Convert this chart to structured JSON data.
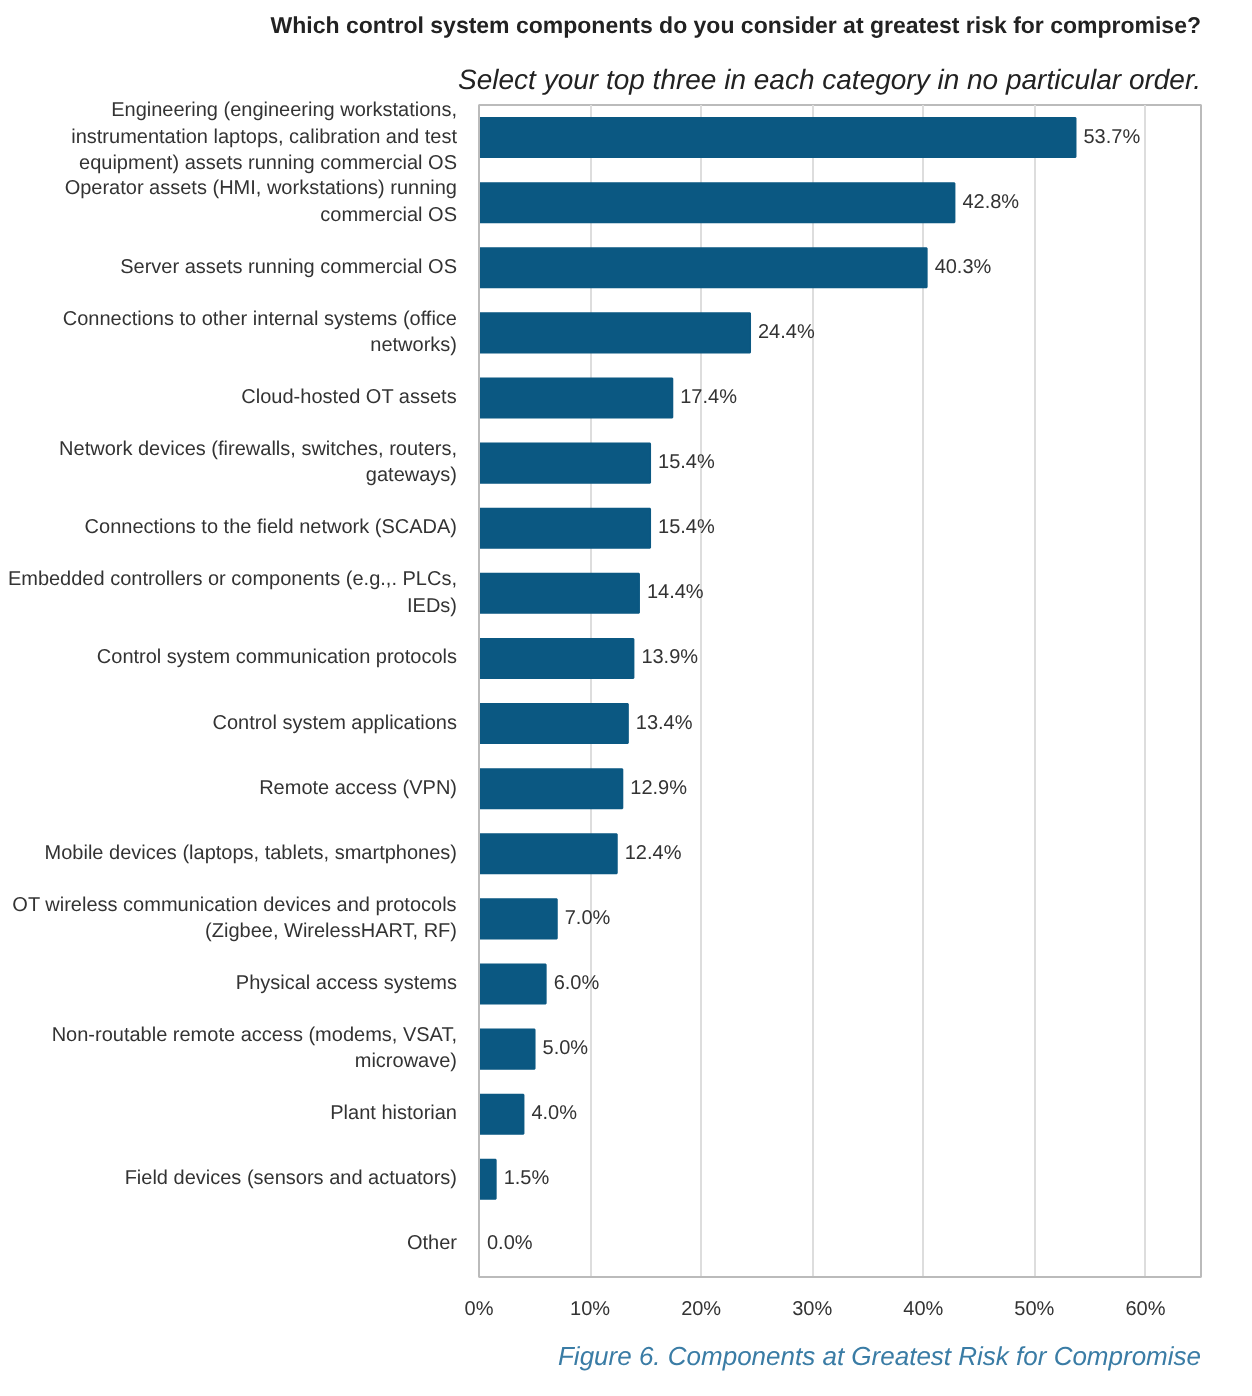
{
  "chart_data": {
    "type": "bar",
    "orientation": "horizontal",
    "title": "Which control system components do you consider at greatest risk for compromise?",
    "subtitle": "Select your top three in each category in no particular order.",
    "categories": [
      "Engineering (engineering workstations, instrumentation laptops, calibration and test equipment) assets running commercial OS",
      "Operator assets (HMI, workstations) running commercial OS",
      "Server assets running commercial OS",
      "Connections to other internal systems (office networks)",
      "Cloud-hosted OT assets",
      "Network devices (firewalls, switches, routers, gateways)",
      "Connections to the field network (SCADA)",
      "Embedded controllers or components (e.g.,. PLCs, IEDs)",
      "Control system communication protocols",
      "Control system applications",
      "Remote access (VPN)",
      "Mobile devices (laptops, tablets, smartphones)",
      "OT wireless communication devices and protocols (Zigbee, WirelessHART, RF)",
      "Physical access systems",
      "Non-routable remote access (modems, VSAT, microwave)",
      "Plant historian",
      "Field devices (sensors and actuators)",
      "Other"
    ],
    "values": [
      53.7,
      42.8,
      40.3,
      24.4,
      17.4,
      15.4,
      15.4,
      14.4,
      13.9,
      13.4,
      12.9,
      12.4,
      7.0,
      6.0,
      5.0,
      4.0,
      1.5,
      0.0
    ],
    "value_labels": [
      "53.7%",
      "42.8%",
      "40.3%",
      "24.4%",
      "17.4%",
      "15.4%",
      "15.4%",
      "14.4%",
      "13.9%",
      "13.4%",
      "12.9%",
      "12.4%",
      "7.0%",
      "6.0%",
      "5.0%",
      "4.0%",
      "1.5%",
      "0.0%"
    ],
    "color": "#0b5882",
    "xlim": [
      0,
      65
    ],
    "xticks": [
      {
        "value": 0,
        "label": "0%"
      },
      {
        "value": 10,
        "label": "10%"
      },
      {
        "value": 20,
        "label": "20%"
      },
      {
        "value": 30,
        "label": "30%"
      },
      {
        "value": 40,
        "label": "40%"
      },
      {
        "value": 50,
        "label": "50%"
      },
      {
        "value": 60,
        "label": "60%"
      }
    ],
    "grid": "x",
    "annotations": [
      "Figure 6. Components at Greatest Risk for Compromise"
    ]
  }
}
